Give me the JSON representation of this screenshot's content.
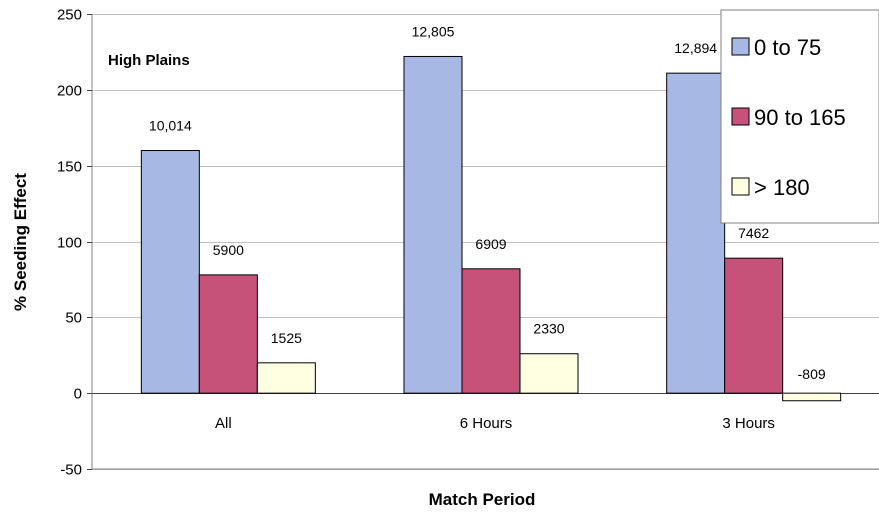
{
  "chart_data": {
    "type": "bar",
    "categories": [
      "All",
      "6 Hours",
      "3 Hours"
    ],
    "series": [
      {
        "name": "0 to 75",
        "values": [
          160,
          222,
          211
        ],
        "labels": [
          "10,014",
          "12,805",
          "12,894"
        ],
        "color": "#a6b8e3"
      },
      {
        "name": "90 to 165",
        "values": [
          78,
          82,
          89
        ],
        "labels": [
          "5900",
          "6909",
          "7462"
        ],
        "color": "#c65179"
      },
      {
        "name": "> 180",
        "values": [
          20,
          26,
          -5
        ],
        "labels": [
          "1525",
          "2330",
          "-809"
        ],
        "color": "#ffffe2"
      }
    ],
    "annotation": "High Plains",
    "xlabel": "Match Period",
    "ylabel": "% Seeding Effect",
    "ylim": [
      -50,
      250
    ],
    "yticks": [
      -50,
      0,
      50,
      100,
      150,
      200,
      250
    ],
    "grid": true,
    "legend": "top-right"
  }
}
